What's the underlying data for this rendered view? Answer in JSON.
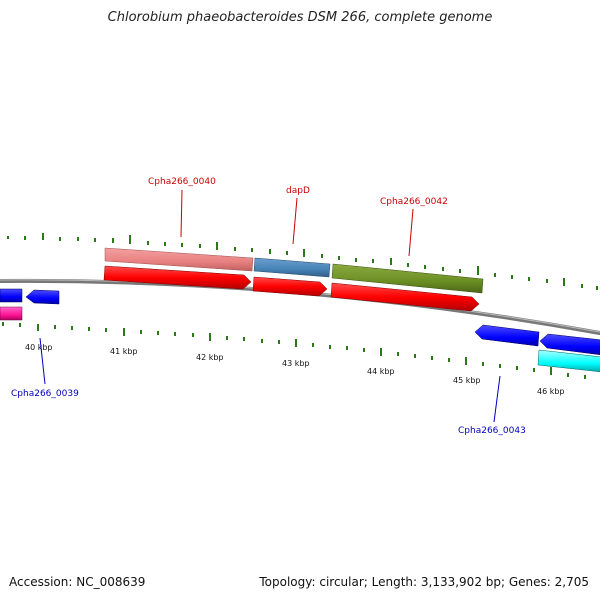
{
  "title": "Chlorobium phaeobacteroides DSM 266, complete genome",
  "footer": {
    "accession": "Accession: NC_008639",
    "summary": "Topology: circular; Length: 3,133,902 bp; Genes: 2,705"
  },
  "colors": {
    "forward_label": "#cc0000",
    "reverse_label": "#0000bb",
    "backbone": "#777777",
    "tick": "#2a7a1a"
  },
  "scale_labels": [
    "40 kbp",
    "41 kbp",
    "42 kbp",
    "43 kbp",
    "44 kbp",
    "45 kbp",
    "46 kbp"
  ],
  "gene_labels": [
    {
      "text": "Cpha266_0040",
      "strand": "forward"
    },
    {
      "text": "dapD",
      "strand": "forward"
    },
    {
      "text": "Cpha266_0042",
      "strand": "forward"
    },
    {
      "text": "Cpha266_0039",
      "strand": "reverse"
    },
    {
      "text": "Cpha266_0043",
      "strand": "reverse"
    }
  ]
}
